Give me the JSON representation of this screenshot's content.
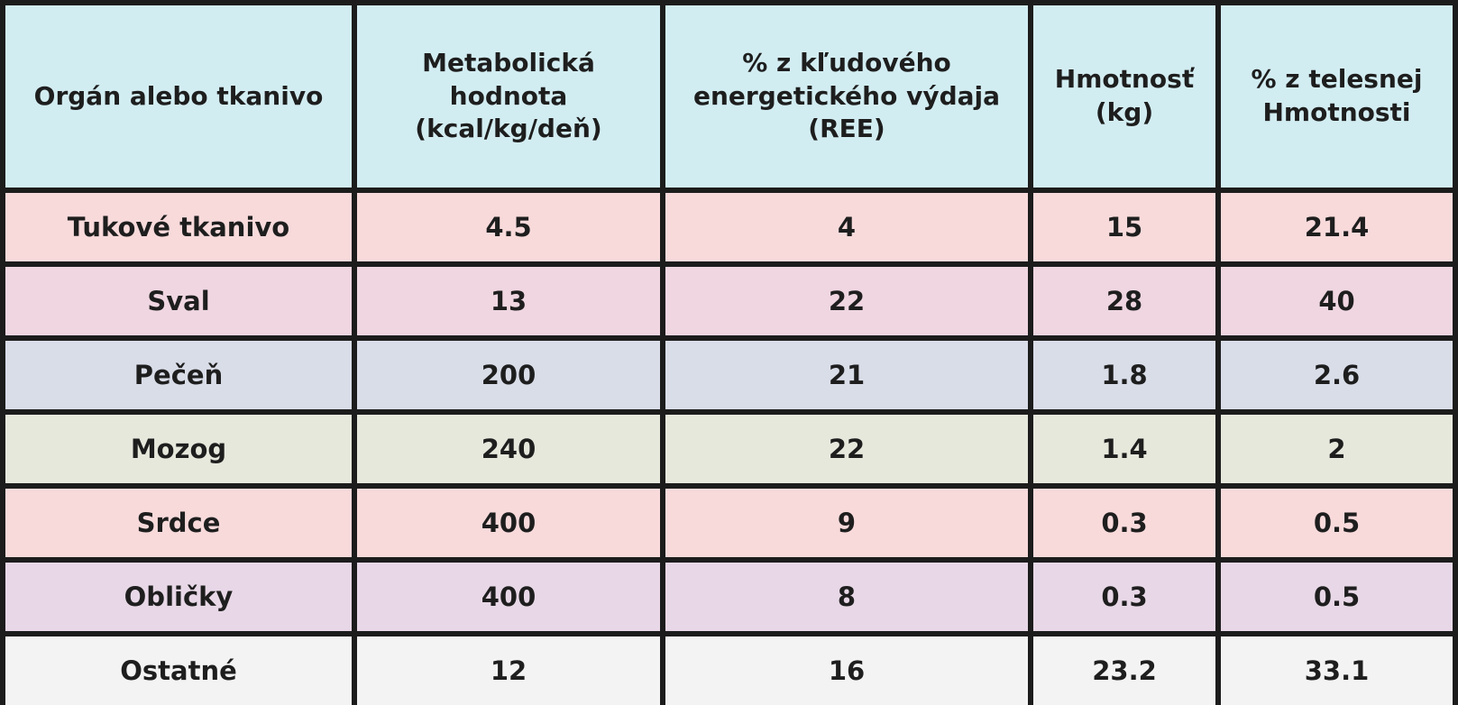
{
  "table": {
    "headers": [
      "Orgán alebo tkanivo",
      "Metabolická\nhodnota\n(kcal/kg/deň)",
      "% z kľudového\nenergetického výdaja\n(REE)",
      "Hmotnosť\n(kg)",
      "% z telesnej\nHmotnosti"
    ],
    "header_color": "#d2edf2",
    "rows": [
      {
        "cells": [
          "Tukové tkanivo",
          "4.5",
          "4",
          "15",
          "21.4"
        ],
        "color": "#f8dadb"
      },
      {
        "cells": [
          "Sval",
          "13",
          "22",
          "28",
          "40"
        ],
        "color": "#efd6e1"
      },
      {
        "cells": [
          "Pečeň",
          "200",
          "21",
          "1.8",
          "2.6"
        ],
        "color": "#d9dde8"
      },
      {
        "cells": [
          "Mozog",
          "240",
          "22",
          "1.4",
          "2"
        ],
        "color": "#e6e8dc"
      },
      {
        "cells": [
          "Srdce",
          "400",
          "9",
          "0.3",
          "0.5"
        ],
        "color": "#f8dadb"
      },
      {
        "cells": [
          "Obličky",
          "400",
          "8",
          "0.3",
          "0.5"
        ],
        "color": "#e8d8e7"
      },
      {
        "cells": [
          "Ostatné",
          "12",
          "16",
          "23.2",
          "33.1"
        ],
        "color": "#f3f3f3"
      }
    ]
  }
}
